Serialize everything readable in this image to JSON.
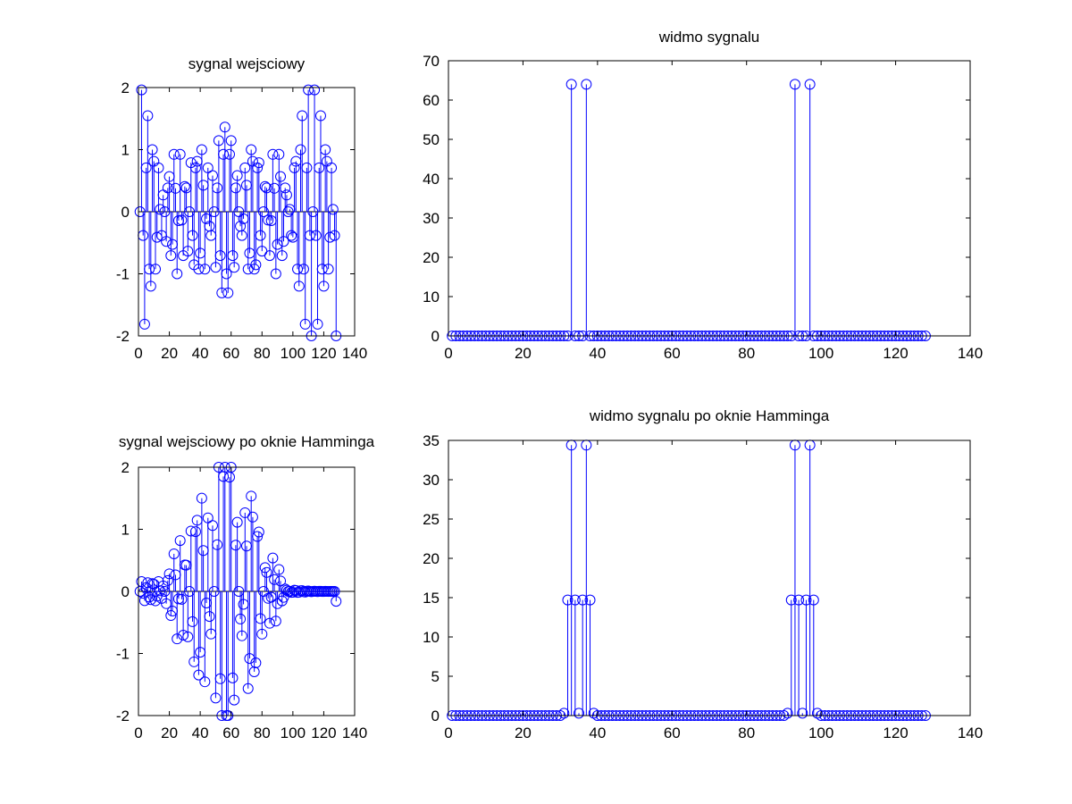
{
  "colors": {
    "series": "#0000ff",
    "axes": "#000000",
    "background": "#ffffff"
  },
  "chart_data": [
    {
      "type": "stem",
      "title": "sygnal wejsciowy",
      "xlim": [
        0,
        140
      ],
      "ylim": [
        -2,
        2
      ],
      "xticks": [
        0,
        20,
        40,
        60,
        80,
        100,
        120,
        140
      ],
      "yticks": [
        -2,
        -1,
        0,
        1,
        2
      ],
      "grid": false,
      "baseline": 0,
      "x": [
        1,
        2,
        3,
        4,
        5,
        6,
        7,
        8,
        9,
        10,
        11,
        12,
        13,
        14,
        15,
        16,
        17,
        18,
        19,
        20,
        21,
        22,
        23,
        24,
        25,
        26,
        27,
        28,
        29,
        30,
        31,
        32,
        33,
        34,
        35,
        36,
        37,
        38,
        39,
        40,
        41,
        42,
        43,
        44,
        45,
        46,
        47,
        48,
        49,
        50,
        51,
        52,
        53,
        54,
        55,
        56,
        57,
        58,
        59,
        60,
        61,
        62,
        63,
        64,
        65,
        66,
        67,
        68,
        69,
        70,
        71,
        72,
        73,
        74,
        75,
        76,
        77,
        78,
        79,
        80,
        81,
        82,
        83,
        84,
        85,
        86,
        87,
        88,
        89,
        90,
        91,
        92,
        93,
        94,
        95,
        96,
        97,
        98,
        99,
        100,
        101,
        102,
        103,
        104,
        105,
        106,
        107,
        108,
        109,
        110,
        111,
        112,
        113,
        114,
        115,
        116,
        117,
        118,
        119,
        120,
        121,
        122,
        123,
        124,
        125,
        126,
        127,
        128
      ],
      "y": [
        0,
        1.962,
        -0.383,
        -1.812,
        0.707,
        1.546,
        -0.924,
        -1.199,
        1,
        0.812,
        -0.924,
        -0.412,
        0.707,
        0.038,
        -0.383,
        0.269,
        0,
        -0.478,
        0.383,
        0.566,
        -0.707,
        -0.527,
        0.924,
        0.377,
        -1,
        -0.144,
        0.924,
        -0.135,
        -0.707,
        0.407,
        0.383,
        -0.635,
        0,
        0.79,
        -0.383,
        -0.854,
        0.707,
        0.812,
        -0.924,
        -0.667,
        1,
        0.427,
        -0.924,
        -0.114,
        0.707,
        -0.234,
        -0.383,
        0.582,
        0,
        -0.896,
        0.383,
        1.146,
        -0.707,
        -1.307,
        0.924,
        1.363,
        -1,
        -1.307,
        0.924,
        1.146,
        -0.707,
        -0.896,
        0.383,
        0.582,
        0,
        -0.234,
        -0.383,
        -0.114,
        0.707,
        0.427,
        -0.924,
        -0.667,
        1,
        0.812,
        -0.924,
        -0.854,
        0.707,
        0.79,
        -0.383,
        -0.635,
        0,
        0.407,
        0.383,
        -0.135,
        -0.707,
        -0.144,
        0.924,
        0.377,
        -1,
        -0.527,
        0.924,
        0.566,
        -0.707,
        -0.478,
        0.383,
        0.269,
        0,
        0.038,
        -0.383,
        -0.412,
        0.707,
        0.812,
        -0.924,
        -1.199,
        1,
        1.546,
        -0.924,
        -1.812,
        0.707,
        1.962,
        -0.383,
        -2,
        0,
        1.962,
        -0.383,
        -1.812,
        0.707,
        1.546,
        -0.924,
        -1.199,
        1,
        0.812,
        -0.924,
        -0.412,
        0.707,
        0.038,
        -0.383,
        -2
      ]
    },
    {
      "type": "stem",
      "title": "widmo sygnalu",
      "xlim": [
        0,
        140
      ],
      "ylim": [
        0,
        70
      ],
      "xticks": [
        0,
        20,
        40,
        60,
        80,
        100,
        120,
        140
      ],
      "yticks": [
        0,
        10,
        20,
        30,
        40,
        50,
        60,
        70
      ],
      "grid": false,
      "baseline": 0,
      "x": [
        1,
        2,
        3,
        4,
        5,
        6,
        7,
        8,
        9,
        10,
        11,
        12,
        13,
        14,
        15,
        16,
        17,
        18,
        19,
        20,
        21,
        22,
        23,
        24,
        25,
        26,
        27,
        28,
        29,
        30,
        31,
        32,
        33,
        34,
        35,
        36,
        37,
        38,
        39,
        40,
        41,
        42,
        43,
        44,
        45,
        46,
        47,
        48,
        49,
        50,
        51,
        52,
        53,
        54,
        55,
        56,
        57,
        58,
        59,
        60,
        61,
        62,
        63,
        64,
        65,
        66,
        67,
        68,
        69,
        70,
        71,
        72,
        73,
        74,
        75,
        76,
        77,
        78,
        79,
        80,
        81,
        82,
        83,
        84,
        85,
        86,
        87,
        88,
        89,
        90,
        91,
        92,
        93,
        94,
        95,
        96,
        97,
        98,
        99,
        100,
        101,
        102,
        103,
        104,
        105,
        106,
        107,
        108,
        109,
        110,
        111,
        112,
        113,
        114,
        115,
        116,
        117,
        118,
        119,
        120,
        121,
        122,
        123,
        124,
        125,
        126,
        127,
        128
      ],
      "y": [
        0,
        0,
        0,
        0,
        0,
        0,
        0,
        0,
        0,
        0,
        0,
        0,
        0,
        0,
        0,
        0,
        0,
        0,
        0,
        0,
        0,
        0,
        0,
        0,
        0,
        0,
        0,
        0,
        0,
        0,
        0,
        0,
        64,
        0,
        0,
        0,
        64,
        0,
        0,
        0,
        0,
        0,
        0,
        0,
        0,
        0,
        0,
        0,
        0,
        0,
        0,
        0,
        0,
        0,
        0,
        0,
        0,
        0,
        0,
        0,
        0,
        0,
        0,
        0,
        0,
        0,
        0,
        0,
        0,
        0,
        0,
        0,
        0,
        0,
        0,
        0,
        0,
        0,
        0,
        0,
        0,
        0,
        0,
        0,
        0,
        0,
        0,
        0,
        0,
        0,
        0,
        0,
        64,
        0,
        0,
        0,
        64,
        0,
        0,
        0,
        0,
        0,
        0,
        0,
        0,
        0,
        0,
        0,
        0,
        0,
        0,
        0,
        0,
        0,
        0,
        0,
        0,
        0,
        0,
        0,
        0,
        0,
        0,
        0,
        0,
        0,
        0,
        0
      ]
    },
    {
      "type": "stem",
      "title": "sygnal wejsciowy po oknie Hamminga",
      "xlim": [
        0,
        140
      ],
      "ylim": [
        -2,
        2
      ],
      "xticks": [
        0,
        20,
        40,
        60,
        80,
        100,
        120,
        140
      ],
      "yticks": [
        -2,
        -1,
        0,
        1,
        2
      ],
      "grid": false,
      "baseline": 0,
      "x": [
        1,
        2,
        3,
        4,
        5,
        6,
        7,
        8,
        9,
        10,
        11,
        12,
        13,
        14,
        15,
        16,
        17,
        18,
        19,
        20,
        21,
        22,
        23,
        24,
        25,
        26,
        27,
        28,
        29,
        30,
        31,
        32,
        33,
        34,
        35,
        36,
        37,
        38,
        39,
        40,
        41,
        42,
        43,
        44,
        45,
        46,
        47,
        48,
        49,
        50,
        51,
        52,
        53,
        54,
        55,
        56,
        57,
        58,
        59,
        60,
        61,
        62,
        63,
        64,
        65,
        66,
        67,
        68,
        69,
        70,
        71,
        72,
        73,
        74,
        75,
        76,
        77,
        78,
        79,
        80,
        81,
        82,
        83,
        84,
        85,
        86,
        87,
        88,
        89,
        90,
        91,
        92,
        93,
        94,
        95,
        96,
        97,
        98,
        99,
        100,
        101,
        102,
        103,
        104,
        105,
        106,
        107,
        108,
        109,
        110,
        111,
        112,
        113,
        114,
        115,
        116,
        117,
        118,
        119,
        120,
        121,
        122,
        123,
        124,
        125,
        126,
        127,
        128
      ],
      "y": [
        0,
        0.158,
        -0.031,
        -0.149,
        0.061,
        0.141,
        -0.092,
        -0.133,
        0.126,
        0.116,
        -0.152,
        -0.078,
        0.159,
        0.01,
        -0.114,
        0.089,
        0,
        -0.197,
        0.174,
        0.283,
        -0.389,
        -0.317,
        0.605,
        0.267,
        -0.765,
        -0.12,
        0.819,
        -0.127,
        -0.705,
        0.427,
        0.422,
        -0.732,
        0,
        0.972,
        -0.488,
        -1.134,
        0.963,
        1.145,
        -1.347,
        -0.98,
        1.501,
        0.658,
        -1.456,
        -0.187,
        1.184,
        -0.404,
        -0.686,
        1.061,
        0,
        -1.717,
        0.751,
        2.256,
        -1.407,
        -2.618,
        1.851,
        2.751,
        -2,
        -2.608,
        1.84,
        2.264,
        -1.394,
        -1.75,
        0.745,
        1.113,
        0,
        -0.445,
        -0.715,
        -0.208,
        1.267,
        0.73,
        -1.565,
        -1.081,
        1.535,
        1.197,
        -1.295,
        -1.151,
        0.884,
        0.957,
        -0.438,
        -0.688,
        0,
        0.383,
        0.306,
        -0.112,
        -0.513,
        -0.094,
        0.538,
        0.191,
        -0.478,
        -0.198,
        0.352,
        0.168,
        -0.153,
        -0.096,
        0.04,
        0.02,
        0,
        0.002,
        -0.016,
        -0.015,
        0.019,
        0.015,
        -0.016,
        -0.013,
        0.01,
        0.012,
        -0.006,
        -0.01,
        0.003,
        0.007,
        0,
        -0.005,
        0,
        0.004,
        0,
        -0.003,
        0.001,
        0.002,
        -0.002,
        -0.002,
        0.001,
        0,
        -0.001,
        0,
        0,
        0,
        0,
        -0.16
      ]
    },
    {
      "type": "stem",
      "title": "widmo sygnalu po oknie Hamminga",
      "xlim": [
        0,
        140
      ],
      "ylim": [
        0,
        35
      ],
      "xticks": [
        0,
        20,
        40,
        60,
        80,
        100,
        120,
        140
      ],
      "yticks": [
        0,
        5,
        10,
        15,
        20,
        25,
        30,
        35
      ],
      "grid": false,
      "baseline": 0,
      "x": [
        1,
        2,
        3,
        4,
        5,
        6,
        7,
        8,
        9,
        10,
        11,
        12,
        13,
        14,
        15,
        16,
        17,
        18,
        19,
        20,
        21,
        22,
        23,
        24,
        25,
        26,
        27,
        28,
        29,
        30,
        31,
        32,
        33,
        34,
        35,
        36,
        37,
        38,
        39,
        40,
        41,
        42,
        43,
        44,
        45,
        46,
        47,
        48,
        49,
        50,
        51,
        52,
        53,
        54,
        55,
        56,
        57,
        58,
        59,
        60,
        61,
        62,
        63,
        64,
        65,
        66,
        67,
        68,
        69,
        70,
        71,
        72,
        73,
        74,
        75,
        76,
        77,
        78,
        79,
        80,
        81,
        82,
        83,
        84,
        85,
        86,
        87,
        88,
        89,
        90,
        91,
        92,
        93,
        94,
        95,
        96,
        97,
        98,
        99,
        100,
        101,
        102,
        103,
        104,
        105,
        106,
        107,
        108,
        109,
        110,
        111,
        112,
        113,
        114,
        115,
        116,
        117,
        118,
        119,
        120,
        121,
        122,
        123,
        124,
        125,
        126,
        127,
        128
      ],
      "y": [
        0,
        0,
        0,
        0,
        0,
        0,
        0,
        0,
        0,
        0,
        0,
        0,
        0,
        0,
        0,
        0,
        0,
        0,
        0,
        0,
        0,
        0,
        0,
        0,
        0,
        0,
        0,
        0,
        0,
        0,
        0.3,
        14.7,
        34.4,
        14.7,
        0.3,
        14.7,
        34.4,
        14.7,
        0.3,
        0,
        0,
        0,
        0,
        0,
        0,
        0,
        0,
        0,
        0,
        0,
        0,
        0,
        0,
        0,
        0,
        0,
        0,
        0,
        0,
        0,
        0,
        0,
        0,
        0,
        0,
        0,
        0,
        0,
        0,
        0,
        0,
        0,
        0,
        0,
        0,
        0,
        0,
        0,
        0,
        0,
        0,
        0,
        0,
        0,
        0,
        0,
        0,
        0,
        0,
        0,
        0.3,
        14.7,
        34.4,
        14.7,
        0.3,
        14.7,
        34.4,
        14.7,
        0.3,
        0,
        0,
        0,
        0,
        0,
        0,
        0,
        0,
        0,
        0,
        0,
        0,
        0,
        0,
        0,
        0,
        0,
        0,
        0,
        0,
        0,
        0,
        0,
        0,
        0,
        0,
        0,
        0,
        0
      ]
    }
  ]
}
